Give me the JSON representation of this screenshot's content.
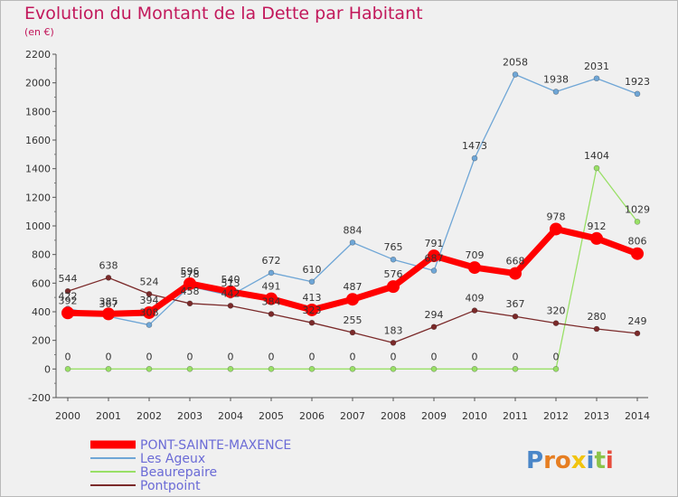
{
  "title": "Evolution du Montant de la Dette par Habitant",
  "subtitle": "(en €)",
  "logo_text": "Proxiti",
  "chart_data": {
    "type": "line",
    "title": "Evolution du Montant de la Dette par Habitant",
    "subtitle": "(en €)",
    "xlabel": "",
    "ylabel": "",
    "ylim": [
      -200,
      2200
    ],
    "yticks": [
      -200,
      0,
      200,
      400,
      600,
      800,
      1000,
      1200,
      1400,
      1600,
      1800,
      2000,
      2200
    ],
    "grid": false,
    "legend_position": "bottom-left",
    "categories": [
      "2000",
      "2001",
      "2002",
      "2003",
      "2004",
      "2005",
      "2006",
      "2007",
      "2008",
      "2009",
      "2010",
      "2011",
      "2012",
      "2013",
      "2014"
    ],
    "series": [
      {
        "name": "PONT-SAINTE-MAXENCE",
        "color": "#ff0000",
        "values": [
          392,
          385,
          394,
          596,
          540,
          491,
          413,
          487,
          576,
          791,
          709,
          668,
          978,
          912,
          806
        ]
      },
      {
        "name": "Les Ageux",
        "color": "#6fa6d6",
        "values": [
          422,
          367,
          308,
          578,
          513,
          672,
          610,
          884,
          765,
          687,
          1473,
          2058,
          1938,
          2031,
          1923
        ]
      },
      {
        "name": "Beaurepaire",
        "color": "#99e066",
        "values": [
          0,
          0,
          0,
          0,
          0,
          0,
          0,
          0,
          0,
          0,
          0,
          0,
          0,
          1404,
          1029
        ]
      },
      {
        "name": "Pontpoint",
        "color": "#7b2a2a",
        "values": [
          544,
          638,
          524,
          458,
          442,
          384,
          323,
          255,
          183,
          294,
          409,
          367,
          320,
          280,
          249
        ]
      }
    ]
  }
}
